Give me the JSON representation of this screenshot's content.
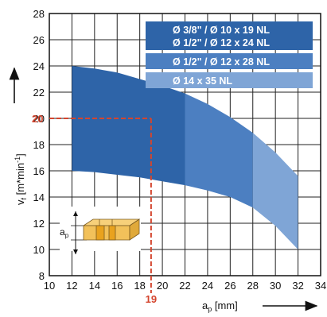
{
  "chart_data": {
    "type": "area",
    "xlabel_main": "a",
    "xlabel_sub": "p",
    "xlabel_unit": " [mm]",
    "ylabel_main": "v",
    "ylabel_sub": "f",
    "ylabel_unit": " [m*min",
    "ylabel_sup": "-1",
    "ylabel_close": "]",
    "xlim": [
      10,
      34
    ],
    "ylim": [
      8,
      28
    ],
    "x_ticks": [
      10,
      12,
      14,
      16,
      18,
      20,
      22,
      24,
      26,
      28,
      30,
      32,
      34
    ],
    "y_ticks": [
      8,
      10,
      12,
      14,
      16,
      18,
      20,
      22,
      24,
      26,
      28
    ],
    "grid": true,
    "legend_position": "top-right",
    "band": {
      "x": [
        12,
        14,
        16,
        18,
        20,
        22,
        24,
        26,
        28,
        30,
        32
      ],
      "upper": [
        24.0,
        23.8,
        23.5,
        23.0,
        22.5,
        21.9,
        21.1,
        20.1,
        18.9,
        17.4,
        15.6
      ],
      "lower": [
        16.0,
        15.9,
        15.7,
        15.5,
        15.2,
        14.9,
        14.5,
        14.0,
        13.2,
        11.8,
        10.0
      ]
    },
    "series": [
      {
        "labels": [
          "Ø 3/8\" / Ø 10 x 19 NL",
          "Ø 1/2\" / Ø 12 x 24 NL"
        ],
        "x_range": [
          12,
          22
        ],
        "color": "#2e64a8"
      },
      {
        "labels": [
          "Ø 1/2\" / Ø 12 x 28 NL"
        ],
        "x_range": [
          22,
          28
        ],
        "color": "#4c7fc1"
      },
      {
        "labels": [
          "Ø 14 x 35 NL"
        ],
        "x_range": [
          28,
          32
        ],
        "color": "#7fa5d6"
      }
    ],
    "marker": {
      "x": 19,
      "y": 20,
      "x_label": "19",
      "y_label": "20",
      "color": "#d4452e"
    },
    "inset_label_main": "a",
    "inset_label_sub": "p"
  }
}
